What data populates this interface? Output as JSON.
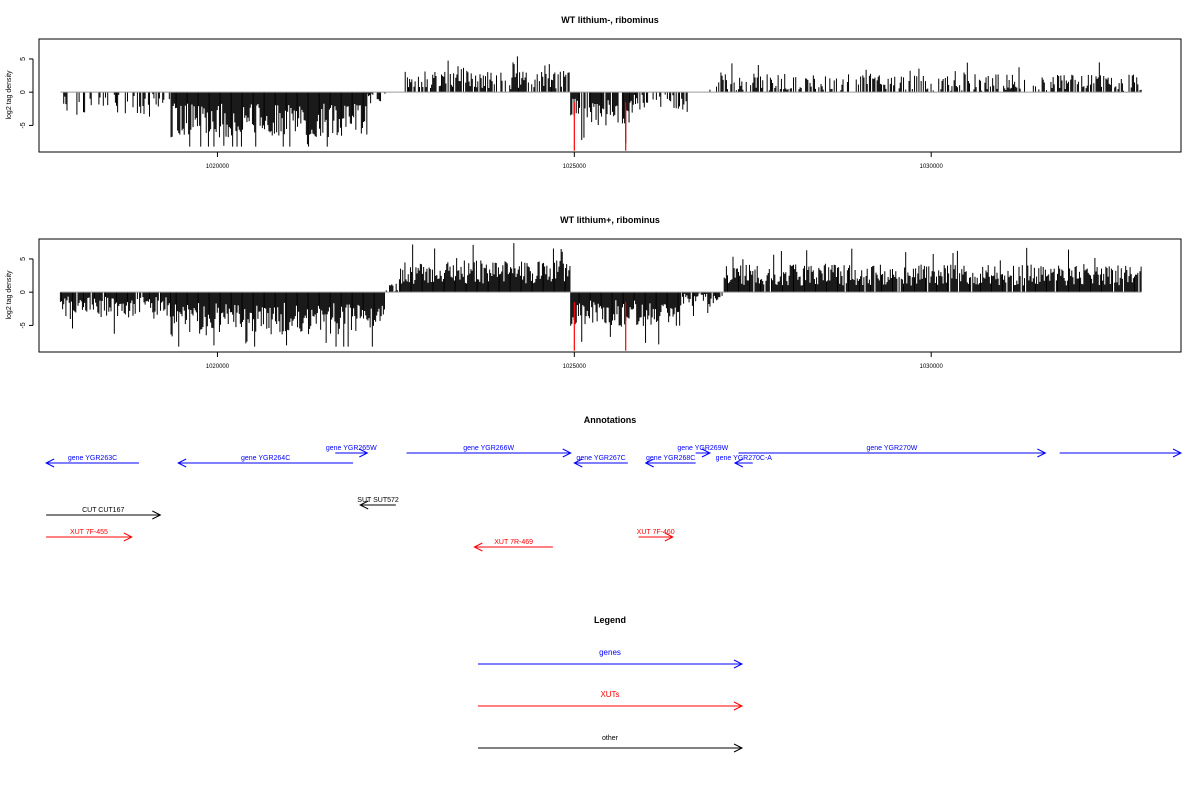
{
  "tracks": [
    {
      "title": "WT lithium-, ribominus",
      "ylabel": "log2 tag density",
      "yticks": [
        -5,
        0,
        5
      ],
      "xticks": [
        1020000,
        1025000,
        1030000
      ],
      "xlim": [
        1017500,
        1033500
      ],
      "ylim": [
        -9,
        8
      ],
      "red_lines_x": [
        1025000,
        1025720
      ],
      "segments": [
        {
          "start": 1017800,
          "end": 1019350,
          "mean": -1.8,
          "amp": 1.6,
          "gap": 0.55,
          "sign": -1
        },
        {
          "start": 1019350,
          "end": 1022100,
          "mean": -4.2,
          "amp": 2.6,
          "gap": 0.0,
          "sign": -1
        },
        {
          "start": 1022100,
          "end": 1022350,
          "mean": -0.8,
          "amp": 0.6,
          "gap": 0.5,
          "sign": -1
        },
        {
          "start": 1022600,
          "end": 1024950,
          "mean": 1.8,
          "amp": 1.4,
          "gap": 0.25,
          "sign": 1
        },
        {
          "start": 1024950,
          "end": 1025780,
          "mean": -3.0,
          "amp": 2.0,
          "gap": 0.1,
          "sign": -1
        },
        {
          "start": 1025780,
          "end": 1026600,
          "mean": -1.5,
          "amp": 1.2,
          "gap": 0.45,
          "sign": -1
        },
        {
          "start": 1026900,
          "end": 1032950,
          "mean": 1.5,
          "amp": 1.3,
          "gap": 0.4,
          "sign": 1
        }
      ]
    },
    {
      "title": "WT lithium+, ribominus",
      "ylabel": "log2 tag density",
      "yticks": [
        -5,
        0,
        5
      ],
      "xticks": [
        1020000,
        1025000,
        1030000
      ],
      "xlim": [
        1017500,
        1033500
      ],
      "ylim": [
        -9,
        8
      ],
      "red_lines_x": [
        1025000,
        1025720
      ],
      "segments": [
        {
          "start": 1017800,
          "end": 1019350,
          "mean": -2.2,
          "amp": 1.6,
          "gap": 0.1,
          "sign": -1
        },
        {
          "start": 1019350,
          "end": 1022350,
          "mean": -4.0,
          "amp": 2.4,
          "gap": 0.0,
          "sign": -1
        },
        {
          "start": 1022350,
          "end": 1022550,
          "mean": 0.8,
          "amp": 0.8,
          "gap": 0.3,
          "sign": 1
        },
        {
          "start": 1022550,
          "end": 1024950,
          "mean": 3.0,
          "amp": 1.8,
          "gap": 0.0,
          "sign": 1
        },
        {
          "start": 1024950,
          "end": 1026500,
          "mean": -3.2,
          "amp": 2.0,
          "gap": 0.0,
          "sign": -1
        },
        {
          "start": 1026500,
          "end": 1027100,
          "mean": -1.2,
          "amp": 1.0,
          "gap": 0.2,
          "sign": -1
        },
        {
          "start": 1027100,
          "end": 1032950,
          "mean": 2.6,
          "amp": 1.6,
          "gap": 0.05,
          "sign": 1
        }
      ]
    }
  ],
  "annotations": {
    "title": "Annotations",
    "features": [
      {
        "label": "gene YGR263C",
        "start": 1017600,
        "end": 1018900,
        "row": 1,
        "strand": "-",
        "type": "gene"
      },
      {
        "label": "gene YGR264C",
        "start": 1019450,
        "end": 1021900,
        "row": 1,
        "strand": "-",
        "type": "gene"
      },
      {
        "label": "gene YGR265W",
        "start": 1021650,
        "end": 1022100,
        "row": 0,
        "strand": "+",
        "type": "gene"
      },
      {
        "label": "gene YGR266W",
        "start": 1022650,
        "end": 1024950,
        "row": 0,
        "strand": "+",
        "type": "gene"
      },
      {
        "label": "gene YGR267C",
        "start": 1025000,
        "end": 1025750,
        "row": 1,
        "strand": "-",
        "type": "gene"
      },
      {
        "label": "gene YGR268C",
        "start": 1026000,
        "end": 1026700,
        "row": 1,
        "strand": "-",
        "type": "gene"
      },
      {
        "label": "gene YGR269W",
        "start": 1026700,
        "end": 1026900,
        "row": 0,
        "strand": "+",
        "type": "gene"
      },
      {
        "label": "gene YGR270C-A",
        "start": 1027250,
        "end": 1027500,
        "row": 1,
        "strand": "-",
        "type": "gene"
      },
      {
        "label": "gene YGR270W",
        "start": 1027300,
        "end": 1031600,
        "row": 0,
        "strand": "+",
        "type": "gene"
      },
      {
        "label": "",
        "start": 1031800,
        "end": 1033500,
        "row": 0,
        "strand": "+",
        "type": "gene"
      },
      {
        "label": "SUT SUT572",
        "start": 1022000,
        "end": 1022500,
        "row": 3,
        "strand": "-",
        "type": "other"
      },
      {
        "label": "CUT CUT167",
        "start": 1017600,
        "end": 1019200,
        "row": 4,
        "strand": "+",
        "type": "other"
      },
      {
        "label": "XUT 7F-455",
        "start": 1017600,
        "end": 1018800,
        "row": 5,
        "strand": "+",
        "type": "xut"
      },
      {
        "label": "XUT 7R-469",
        "start": 1023600,
        "end": 1024700,
        "row": 6,
        "strand": "-",
        "type": "xut"
      },
      {
        "label": "XUT 7F-460",
        "start": 1025900,
        "end": 1026380,
        "row": 5,
        "strand": "+",
        "type": "xut"
      }
    ]
  },
  "legend": {
    "title": "Legend",
    "items": [
      {
        "label": "genes",
        "type": "gene"
      },
      {
        "label": "XUTs",
        "type": "xut"
      },
      {
        "label": "other",
        "type": "other"
      }
    ]
  },
  "colors": {
    "gene": "#0000ff",
    "xut": "#ff0000",
    "other": "#000000",
    "red_line": "#ff0000",
    "bars": "#000000"
  },
  "chart_data": [
    {
      "type": "bar",
      "title": "WT lithium-, ribominus",
      "xlabel": "",
      "ylabel": "log2 tag density",
      "x_tick_labels": [
        "1020000",
        "1025000",
        "1030000"
      ],
      "y_tick_labels": [
        "-5",
        "0",
        "5"
      ],
      "xlim": [
        1017500,
        1033500
      ],
      "ylim": [
        -9,
        8
      ],
      "grid": false,
      "note_regions": [
        {
          "start": 1017800,
          "end": 1019350,
          "approx_value": -1.8
        },
        {
          "start": 1019350,
          "end": 1022100,
          "approx_value": -4.2
        },
        {
          "start": 1022600,
          "end": 1024950,
          "approx_value": 1.8
        },
        {
          "start": 1024950,
          "end": 1025780,
          "approx_value": -3.0
        },
        {
          "start": 1025780,
          "end": 1026600,
          "approx_value": -1.5
        },
        {
          "start": 1026900,
          "end": 1032950,
          "approx_value": 1.5
        }
      ]
    },
    {
      "type": "bar",
      "title": "WT lithium+, ribominus",
      "xlabel": "",
      "ylabel": "log2 tag density",
      "x_tick_labels": [
        "1020000",
        "1025000",
        "1030000"
      ],
      "y_tick_labels": [
        "-5",
        "0",
        "5"
      ],
      "xlim": [
        1017500,
        1033500
      ],
      "ylim": [
        -9,
        8
      ],
      "grid": false,
      "note_regions": [
        {
          "start": 1017800,
          "end": 1019350,
          "approx_value": -2.2
        },
        {
          "start": 1019350,
          "end": 1022350,
          "approx_value": -4.0
        },
        {
          "start": 1022550,
          "end": 1024950,
          "approx_value": 3.0
        },
        {
          "start": 1024950,
          "end": 1026500,
          "approx_value": -3.2
        },
        {
          "start": 1026500,
          "end": 1027100,
          "approx_value": -1.2
        },
        {
          "start": 1027100,
          "end": 1032950,
          "approx_value": 2.6
        }
      ]
    }
  ]
}
